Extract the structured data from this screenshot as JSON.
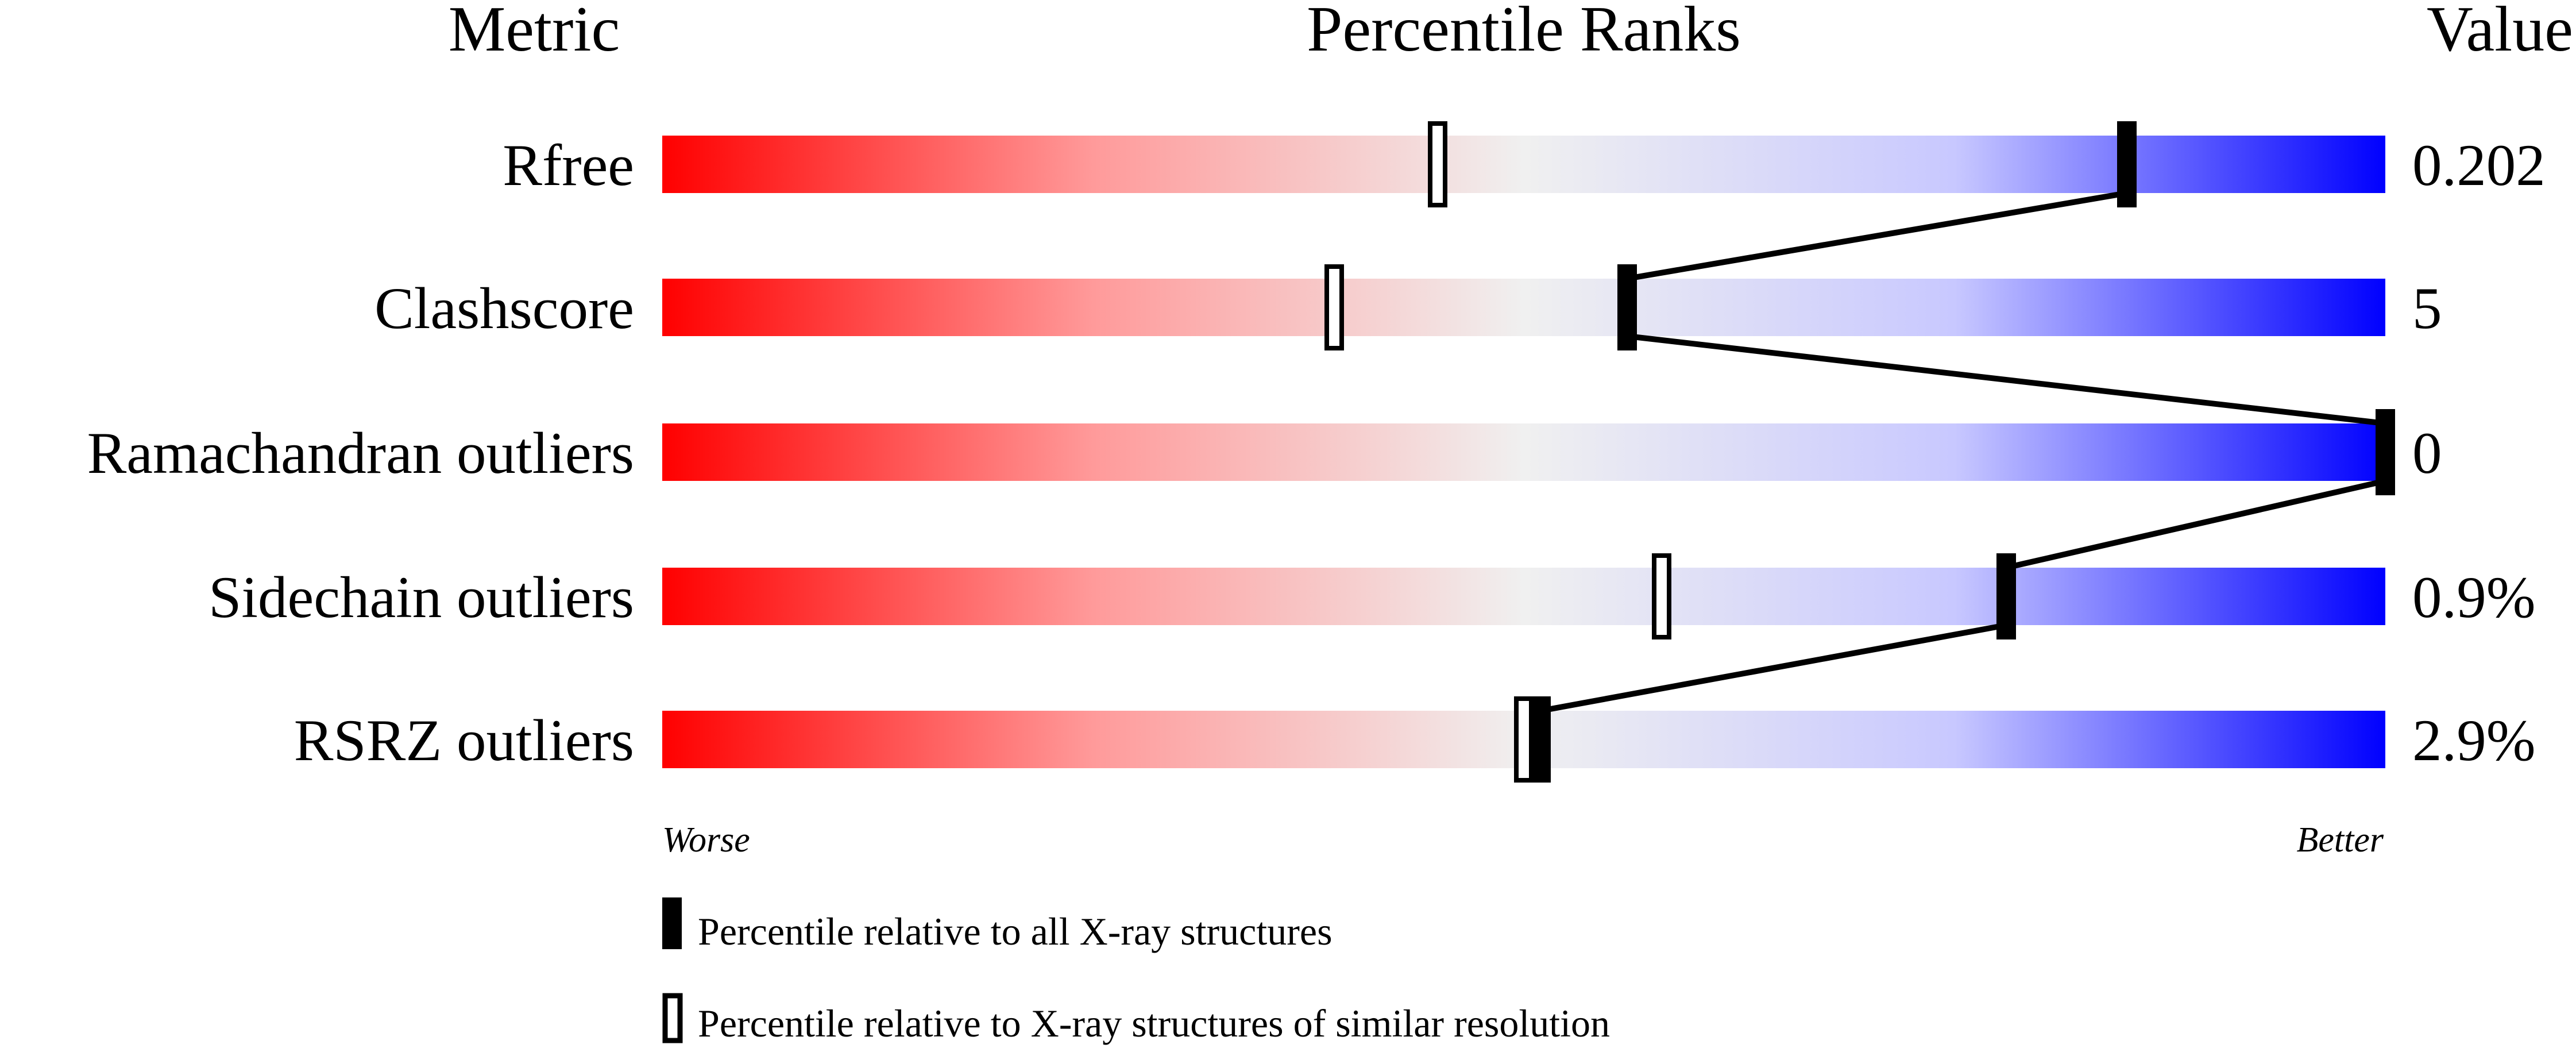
{
  "chart_data": {
    "type": "percentile-bar",
    "headers": {
      "metric": "Metric",
      "ranks": "Percentile Ranks",
      "value": "Value"
    },
    "xlim": [
      0,
      100
    ],
    "axis_labels": {
      "left": "Worse",
      "right": "Better"
    },
    "gradient_colors": {
      "worse": "#ff0000",
      "middle": "#f0f0f0",
      "better": "#0000ff"
    },
    "metrics": [
      {
        "name": "Rfree",
        "value": "0.202",
        "percentile_all": 85,
        "percentile_similar": 45
      },
      {
        "name": "Clashscore",
        "value": "5",
        "percentile_all": 56,
        "percentile_similar": 39
      },
      {
        "name": "Ramachandran outliers",
        "value": "0",
        "percentile_all": 100,
        "percentile_similar": 100
      },
      {
        "name": "Sidechain outliers",
        "value": "0.9%",
        "percentile_all": 78,
        "percentile_similar": 58
      },
      {
        "name": "RSRZ outliers",
        "value": "2.9%",
        "percentile_all": 51,
        "percentile_similar": 50
      }
    ],
    "legend": [
      {
        "marker": "filled",
        "label": "Percentile relative to all X-ray structures"
      },
      {
        "marker": "open",
        "label": "Percentile relative to X-ray structures of similar resolution"
      }
    ]
  }
}
